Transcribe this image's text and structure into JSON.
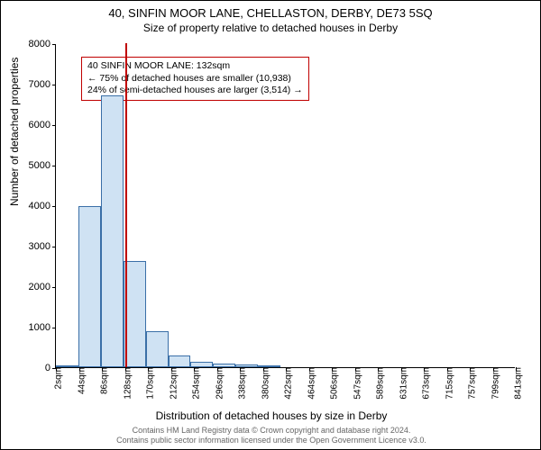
{
  "title": "40, SINFIN MOOR LANE, CHELLASTON, DERBY, DE73 5SQ",
  "subtitle": "Size of property relative to detached houses in Derby",
  "ylabel": "Number of detached properties",
  "xlabel": "Distribution of detached houses by size in Derby",
  "chart": {
    "type": "bar",
    "ylim": [
      0,
      8000
    ],
    "ytick_step": 1000,
    "xticks": [
      "2sqm",
      "44sqm",
      "86sqm",
      "128sqm",
      "170sqm",
      "212sqm",
      "254sqm",
      "296sqm",
      "338sqm",
      "380sqm",
      "422sqm",
      "464sqm",
      "506sqm",
      "547sqm",
      "589sqm",
      "631sqm",
      "673sqm",
      "715sqm",
      "757sqm",
      "799sqm",
      "841sqm"
    ],
    "bar_centers_sqm": [
      23,
      65,
      107,
      149,
      191,
      233,
      275,
      317,
      359,
      401
    ],
    "values": [
      10,
      3980,
      6720,
      2620,
      900,
      300,
      140,
      90,
      70,
      50
    ],
    "bar_fill": "#cfe2f3",
    "bar_stroke": "#3a6fa7",
    "ref_line_sqm": 132,
    "ref_line_color": "#c00000",
    "x_range_sqm": [
      2,
      862
    ],
    "bar_width_sqm": 42
  },
  "annotation": {
    "line1": "40 SINFIN MOOR LANE: 132sqm",
    "line2": "← 75% of detached houses are smaller (10,938)",
    "line3": "24% of semi-detached houses are larger (3,514) →",
    "border_color": "#c00000"
  },
  "footer": {
    "line1": "Contains HM Land Registry data © Crown copyright and database right 2024.",
    "line2": "Contains public sector information licensed under the Open Government Licence v3.0."
  }
}
